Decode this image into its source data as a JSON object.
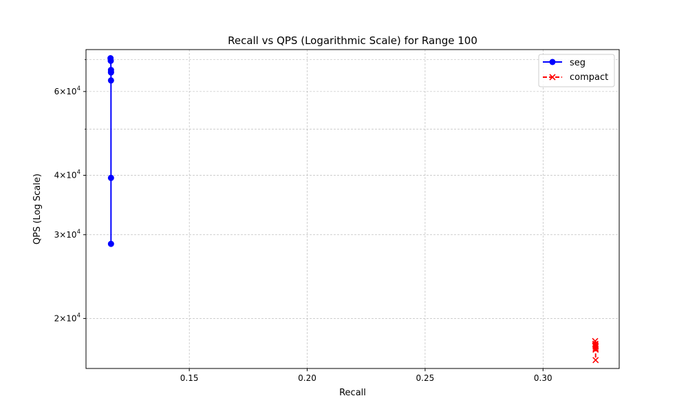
{
  "chart_data": {
    "type": "line",
    "title": "Recall vs QPS (Logarithmic Scale) for Range 100",
    "xlabel": "Recall",
    "ylabel": "QPS (Log Scale)",
    "xlim": [
      0.1062,
      0.3323
    ],
    "ylim": [
      15700,
      73500
    ],
    "yscale": "log",
    "grid": true,
    "legend_position": "top-right",
    "x_ticks": [
      {
        "value": 0.15,
        "label": "0.15"
      },
      {
        "value": 0.2,
        "label": "0.20"
      },
      {
        "value": 0.25,
        "label": "0.25"
      },
      {
        "value": 0.3,
        "label": "0.30"
      }
    ],
    "y_ticks": [
      {
        "value": 20000,
        "base": "2",
        "exp": "4"
      },
      {
        "value": 30000,
        "base": "3",
        "exp": "4"
      },
      {
        "value": 40000,
        "base": "4",
        "exp": "4"
      },
      {
        "value": 60000,
        "base": "6",
        "exp": "4"
      }
    ],
    "y_minor_ticks": [
      50000,
      70000
    ],
    "series": [
      {
        "name": "seg",
        "color": "#0000ff",
        "linestyle": "solid",
        "marker": "circle",
        "x": [
          0.1166,
          0.1167,
          0.1168,
          0.1168,
          0.1168,
          0.1168,
          0.1168,
          0.1168
        ],
        "y": [
          70500,
          69600,
          66600,
          66000,
          65800,
          63300,
          39500,
          28700
        ]
      },
      {
        "name": "compact",
        "color": "#ff0000",
        "linestyle": "dashed",
        "marker": "x",
        "x": [
          0.3221,
          0.3222,
          0.3222,
          0.3223,
          0.3223,
          0.3223,
          0.3223,
          0.3223
        ],
        "y": [
          17930,
          17700,
          17610,
          17500,
          17440,
          17300,
          17200,
          16350
        ]
      }
    ]
  }
}
